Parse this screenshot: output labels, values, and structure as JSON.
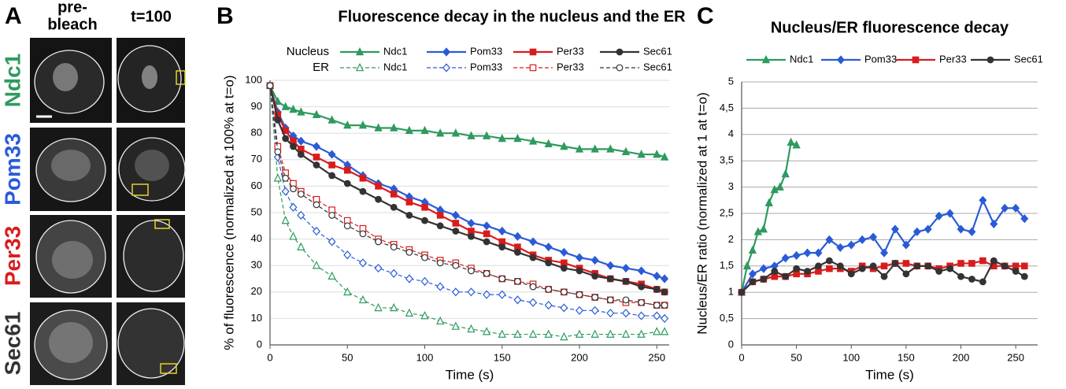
{
  "panel_a": {
    "label": "A",
    "columns": [
      [
        "pre-",
        "bleach"
      ],
      [
        "t=100"
      ]
    ],
    "rows": [
      {
        "name": "Ndc1",
        "color": "#2e9a5f"
      },
      {
        "name": "Pom33",
        "color": "#2a5bd7"
      },
      {
        "name": "Per33",
        "color": "#d81c1c"
      },
      {
        "name": "Sec61",
        "color": "#333333"
      }
    ]
  },
  "chart_data": [
    {
      "type": "line",
      "panel": "B",
      "title": "Fluorescence decay in the nucleus and the ER",
      "xlabel": "Time (s)",
      "ylabel": "% of fluorescence (normalized at 100% at t=o)",
      "x": [
        0,
        5,
        10,
        15,
        20,
        30,
        40,
        50,
        60,
        70,
        80,
        90,
        100,
        110,
        120,
        130,
        140,
        150,
        160,
        170,
        180,
        190,
        200,
        210,
        220,
        230,
        240,
        250,
        255
      ],
      "xlim": [
        0,
        258
      ],
      "xticks": [
        0,
        50,
        100,
        150,
        200,
        250
      ],
      "ylim": [
        0,
        100
      ],
      "yticks": [
        0,
        10,
        20,
        30,
        40,
        50,
        60,
        70,
        80,
        90,
        100
      ],
      "grid": true,
      "groups": [
        {
          "name": "Nucleus",
          "hollow": false,
          "dashed": false,
          "series": [
            {
              "name": "Ndc1",
              "color": "#2e9a5f",
              "marker": "triangle",
              "values": [
                98,
                92,
                90,
                89,
                88,
                87,
                85,
                83,
                83,
                82,
                82,
                81,
                81,
                80,
                80,
                79,
                79,
                78,
                78,
                77,
                76,
                75,
                74,
                74,
                74,
                73,
                72,
                72,
                71
              ]
            },
            {
              "name": "Pom33",
              "color": "#2a5bd7",
              "marker": "diamond",
              "values": [
                98,
                88,
                82,
                79,
                77,
                75,
                72,
                68,
                64,
                61,
                59,
                56,
                54,
                51,
                49,
                46,
                45,
                43,
                41,
                39,
                37,
                35,
                33,
                32,
                30,
                29,
                28,
                26,
                25
              ]
            },
            {
              "name": "Per33",
              "color": "#d81c1c",
              "marker": "square",
              "values": [
                98,
                87,
                81,
                77,
                74,
                71,
                68,
                66,
                63,
                60,
                57,
                54,
                52,
                49,
                46,
                43,
                42,
                39,
                37,
                34,
                32,
                31,
                29,
                27,
                25,
                24,
                23,
                21,
                20
              ]
            },
            {
              "name": "Sec61",
              "color": "#333333",
              "marker": "circle",
              "values": [
                98,
                85,
                78,
                75,
                72,
                68,
                64,
                61,
                58,
                55,
                52,
                49,
                47,
                45,
                43,
                41,
                39,
                37,
                35,
                33,
                31,
                29,
                28,
                26,
                25,
                24,
                22,
                21,
                20
              ]
            }
          ]
        },
        {
          "name": "ER",
          "hollow": true,
          "dashed": true,
          "series": [
            {
              "name": "Ndc1",
              "color": "#2e9a5f",
              "marker": "triangle",
              "values": [
                98,
                63,
                47,
                41,
                37,
                30,
                26,
                20,
                17,
                14,
                14,
                12,
                11,
                9,
                7,
                6,
                5,
                4,
                4,
                4,
                4,
                3,
                4,
                4,
                4,
                4,
                4,
                5,
                5
              ]
            },
            {
              "name": "Pom33",
              "color": "#2a5bd7",
              "marker": "diamond",
              "values": [
                98,
                71,
                58,
                52,
                49,
                43,
                39,
                34,
                31,
                29,
                27,
                25,
                24,
                22,
                20,
                20,
                19,
                19,
                17,
                16,
                15,
                14,
                13,
                13,
                12,
                12,
                11,
                11,
                10
              ]
            },
            {
              "name": "Per33",
              "color": "#d81c1c",
              "marker": "square",
              "values": [
                98,
                75,
                65,
                61,
                58,
                55,
                51,
                47,
                44,
                40,
                38,
                36,
                34,
                32,
                31,
                29,
                27,
                25,
                24,
                23,
                21,
                20,
                19,
                18,
                17,
                16,
                16,
                15,
                15
              ]
            },
            {
              "name": "Sec61",
              "color": "#333333",
              "marker": "circle",
              "values": [
                98,
                73,
                63,
                59,
                57,
                53,
                49,
                45,
                42,
                39,
                37,
                35,
                33,
                31,
                30,
                28,
                27,
                25,
                24,
                22,
                21,
                20,
                19,
                18,
                17,
                17,
                16,
                15,
                15
              ]
            }
          ]
        }
      ]
    },
    {
      "type": "line",
      "panel": "C",
      "title": "Nucleus/ER fluorescence decay",
      "xlabel": "Time (s)",
      "ylabel": "Nucleus/ER ratio (normalized at 1 at t=o)",
      "xlim": [
        0,
        270
      ],
      "xticks": [
        0,
        50,
        100,
        150,
        200,
        250
      ],
      "ylim": [
        0,
        5
      ],
      "yticks": [
        0,
        {
          "value": 0.5,
          "label": "0,5"
        },
        1,
        {
          "value": 1.5,
          "label": "1,5"
        },
        2,
        {
          "value": 2.5,
          "label": "2,5"
        },
        3,
        {
          "value": 3.5,
          "label": "3,5"
        },
        4,
        {
          "value": 4.5,
          "label": "4,5"
        },
        5
      ],
      "grid": true,
      "groups": [
        {
          "hollow": false,
          "dashed": false,
          "series": [
            {
              "name": "Ndc1",
              "color": "#2e9a5f",
              "marker": "triangle",
              "x": [
                0,
                5,
                10,
                15,
                20,
                25,
                30,
                35,
                40,
                45,
                50
              ],
              "values": [
                1,
                1.5,
                1.8,
                2.15,
                2.2,
                2.7,
                2.95,
                3,
                3.25,
                3.85,
                3.8
              ]
            },
            {
              "name": "Pom33",
              "color": "#2a5bd7",
              "marker": "diamond",
              "x": [
                0,
                10,
                20,
                30,
                40,
                50,
                60,
                70,
                80,
                90,
                100,
                110,
                120,
                130,
                140,
                150,
                160,
                170,
                180,
                190,
                200,
                210,
                220,
                230,
                240,
                250,
                258
              ],
              "values": [
                1,
                1.35,
                1.45,
                1.5,
                1.65,
                1.7,
                1.75,
                1.75,
                2,
                1.85,
                1.9,
                2,
                2.05,
                1.75,
                2.2,
                1.9,
                2.15,
                2.2,
                2.45,
                2.5,
                2.2,
                2.15,
                2.75,
                2.3,
                2.6,
                2.6,
                2.4
              ]
            },
            {
              "name": "Per33",
              "color": "#d81c1c",
              "marker": "square",
              "x": [
                0,
                10,
                20,
                30,
                40,
                50,
                60,
                70,
                80,
                90,
                100,
                110,
                120,
                130,
                140,
                150,
                160,
                170,
                180,
                190,
                200,
                210,
                220,
                230,
                240,
                250,
                258
              ],
              "values": [
                1,
                1.2,
                1.25,
                1.3,
                1.3,
                1.35,
                1.35,
                1.4,
                1.45,
                1.45,
                1.4,
                1.5,
                1.45,
                1.5,
                1.55,
                1.55,
                1.5,
                1.5,
                1.45,
                1.5,
                1.55,
                1.55,
                1.6,
                1.5,
                1.5,
                1.5,
                1.5
              ]
            },
            {
              "name": "Sec61",
              "color": "#333333",
              "marker": "circle",
              "x": [
                0,
                10,
                20,
                30,
                40,
                50,
                60,
                70,
                80,
                90,
                100,
                110,
                120,
                130,
                140,
                150,
                160,
                170,
                180,
                190,
                200,
                210,
                220,
                230,
                240,
                250,
                258
              ],
              "values": [
                1,
                1.2,
                1.25,
                1.4,
                1.3,
                1.45,
                1.4,
                1.5,
                1.6,
                1.5,
                1.35,
                1.45,
                1.5,
                1.3,
                1.55,
                1.35,
                1.5,
                1.5,
                1.4,
                1.45,
                1.3,
                1.25,
                1.2,
                1.6,
                1.5,
                1.4,
                1.3
              ]
            }
          ]
        }
      ]
    }
  ]
}
